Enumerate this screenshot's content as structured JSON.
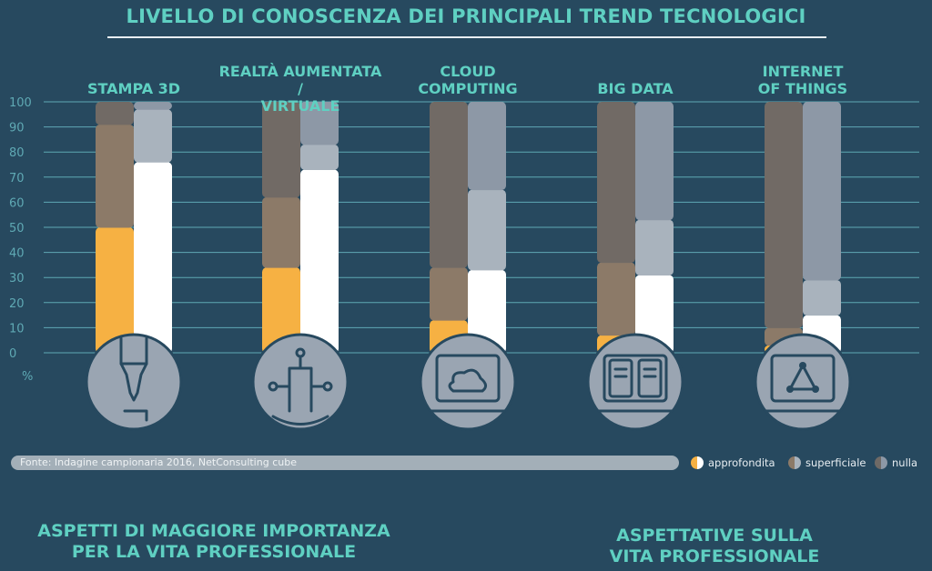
{
  "header": {
    "title": "LIVELLO DI CONOSCENZA DEI PRINCIPALI TREND TECNOLOGICI"
  },
  "footer": {
    "source": "Fonte: Indagine campionaria 2016, NetConsulting cube",
    "legend": [
      "approfondita",
      "superficiale",
      "nulla"
    ]
  },
  "bottom": {
    "left_heading_1": "ASPETTI DI MAGGIORE IMPORTANZA",
    "left_heading_2": "PER LA VITA PROFESSIONALE",
    "right_heading_1": "ASPETTATIVE SULLA",
    "right_heading_2": "VITA PROFESSIONALE"
  },
  "colors": {
    "background": "#27495f",
    "approfondita": "#f6b143",
    "superficiale": "#8c7a68",
    "nulla": "#94a0b0",
    "right_base": "#ffffff",
    "title": "#5fd0c2"
  },
  "chart_data": {
    "type": "bar",
    "stacked": true,
    "title": "LIVELLO DI CONOSCENZA DEI PRINCIPALI TREND TECNOLOGICI",
    "ylabel": "%",
    "ylim": [
      0,
      100
    ],
    "yticks": [
      0,
      10,
      20,
      30,
      40,
      50,
      60,
      70,
      80,
      90,
      100
    ],
    "grid": true,
    "legend_position": "bottom-right",
    "categories": [
      {
        "line1": "STAMPA 3D",
        "line2": "",
        "icon": "3d-printer-icon"
      },
      {
        "line1": "REALTÀ AUMENTATA /",
        "line2": "VIRTUALE",
        "icon": "circuit-icon"
      },
      {
        "line1": "CLOUD",
        "line2": "COMPUTING",
        "icon": "cloud-monitor-icon"
      },
      {
        "line1": "BIG DATA",
        "line2": "",
        "icon": "server-icon"
      },
      {
        "line1": "INTERNET",
        "line2": "OF THINGS",
        "icon": "network-monitor-icon"
      }
    ],
    "left_column": {
      "series": [
        {
          "name": "approfondita",
          "values": [
            50,
            34,
            13,
            7,
            3
          ]
        },
        {
          "name": "superficiale",
          "values": [
            41,
            28,
            21,
            29,
            7
          ]
        },
        {
          "name": "nulla",
          "values": [
            9,
            38,
            66,
            64,
            90
          ]
        }
      ]
    },
    "right_column": {
      "series": [
        {
          "name": "",
          "values": [
            76,
            73,
            33,
            31,
            15
          ]
        },
        {
          "name": "",
          "values": [
            21,
            10,
            32,
            22,
            14
          ]
        },
        {
          "name": "",
          "values": [
            3,
            17,
            35,
            47,
            71
          ]
        }
      ]
    }
  }
}
